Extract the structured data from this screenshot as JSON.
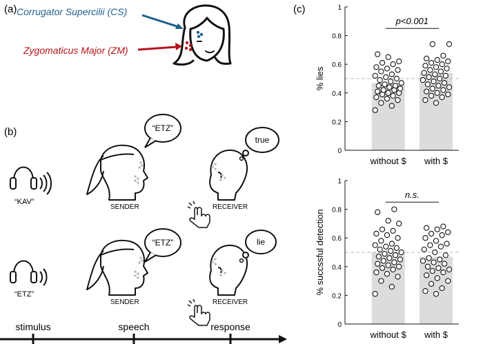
{
  "panel_a": {
    "label": "(a)",
    "cs_label": "Corrugator Supercilii (CS)",
    "zm_label": "Zygomaticus Major (ZM)",
    "cs_color": "#1f5f8b",
    "zm_color": "#b5121b"
  },
  "panel_b": {
    "label": "(b)",
    "trial1": {
      "stimulus_word": "“KAV”",
      "speech_bubble": "“ETZ”",
      "sender_label": "SENDER",
      "receiver_bubble": "true",
      "receiver_label": "RECEIVER"
    },
    "trial2": {
      "stimulus_word": "“ETZ”",
      "speech_bubble": "“ETZ”",
      "sender_label": "SENDER",
      "receiver_bubble": "lie",
      "receiver_label": "RECEIVER"
    },
    "timeline": [
      "stimulus",
      "speech",
      "response"
    ]
  },
  "panel_c": {
    "label": "(c)",
    "bar_color": "#dcdcdc",
    "ref_line": 0.5
  },
  "chart_data": [
    {
      "type": "bar",
      "categories": [
        "without $",
        "with $"
      ],
      "values": [
        0.47,
        0.54
      ],
      "ylabel": "% lies",
      "ylim": [
        0,
        1
      ],
      "yticks": [
        "0",
        "0.2",
        "0.4",
        "0.6",
        "0.8",
        "1"
      ],
      "annotation": "p<0.001",
      "reference_line": 0.5,
      "points": [
        [
          0.28,
          0.31,
          0.33,
          0.35,
          0.36,
          0.37,
          0.38,
          0.39,
          0.4,
          0.4,
          0.41,
          0.42,
          0.42,
          0.43,
          0.44,
          0.45,
          0.45,
          0.46,
          0.47,
          0.48,
          0.49,
          0.5,
          0.51,
          0.52,
          0.53,
          0.55,
          0.56,
          0.57,
          0.58,
          0.6,
          0.61,
          0.62,
          0.65,
          0.67
        ],
        [
          0.33,
          0.35,
          0.37,
          0.38,
          0.39,
          0.4,
          0.41,
          0.42,
          0.43,
          0.44,
          0.45,
          0.46,
          0.47,
          0.48,
          0.49,
          0.5,
          0.51,
          0.52,
          0.53,
          0.54,
          0.55,
          0.56,
          0.57,
          0.58,
          0.59,
          0.6,
          0.61,
          0.62,
          0.63,
          0.64,
          0.66,
          0.74,
          0.74
        ]
      ]
    },
    {
      "type": "bar",
      "categories": [
        "without $",
        "with $"
      ],
      "values": [
        0.5,
        0.47
      ],
      "ylabel": "% succssful detection",
      "ylim": [
        0,
        1
      ],
      "yticks": [
        "0",
        "0.2",
        "0.4",
        "0.6",
        "0.8",
        "1"
      ],
      "annotation": "n.s.",
      "reference_line": 0.5,
      "points": [
        [
          0.21,
          0.26,
          0.3,
          0.33,
          0.35,
          0.36,
          0.38,
          0.39,
          0.4,
          0.41,
          0.42,
          0.43,
          0.44,
          0.45,
          0.46,
          0.47,
          0.48,
          0.49,
          0.5,
          0.51,
          0.52,
          0.53,
          0.54,
          0.55,
          0.56,
          0.58,
          0.6,
          0.62,
          0.63,
          0.65,
          0.66,
          0.7,
          0.72,
          0.78,
          0.8
        ],
        [
          0.21,
          0.23,
          0.25,
          0.28,
          0.3,
          0.32,
          0.34,
          0.36,
          0.37,
          0.38,
          0.39,
          0.4,
          0.42,
          0.43,
          0.44,
          0.45,
          0.46,
          0.48,
          0.5,
          0.52,
          0.54,
          0.55,
          0.56,
          0.58,
          0.6,
          0.62,
          0.63,
          0.64,
          0.66,
          0.67,
          0.68
        ]
      ]
    }
  ]
}
